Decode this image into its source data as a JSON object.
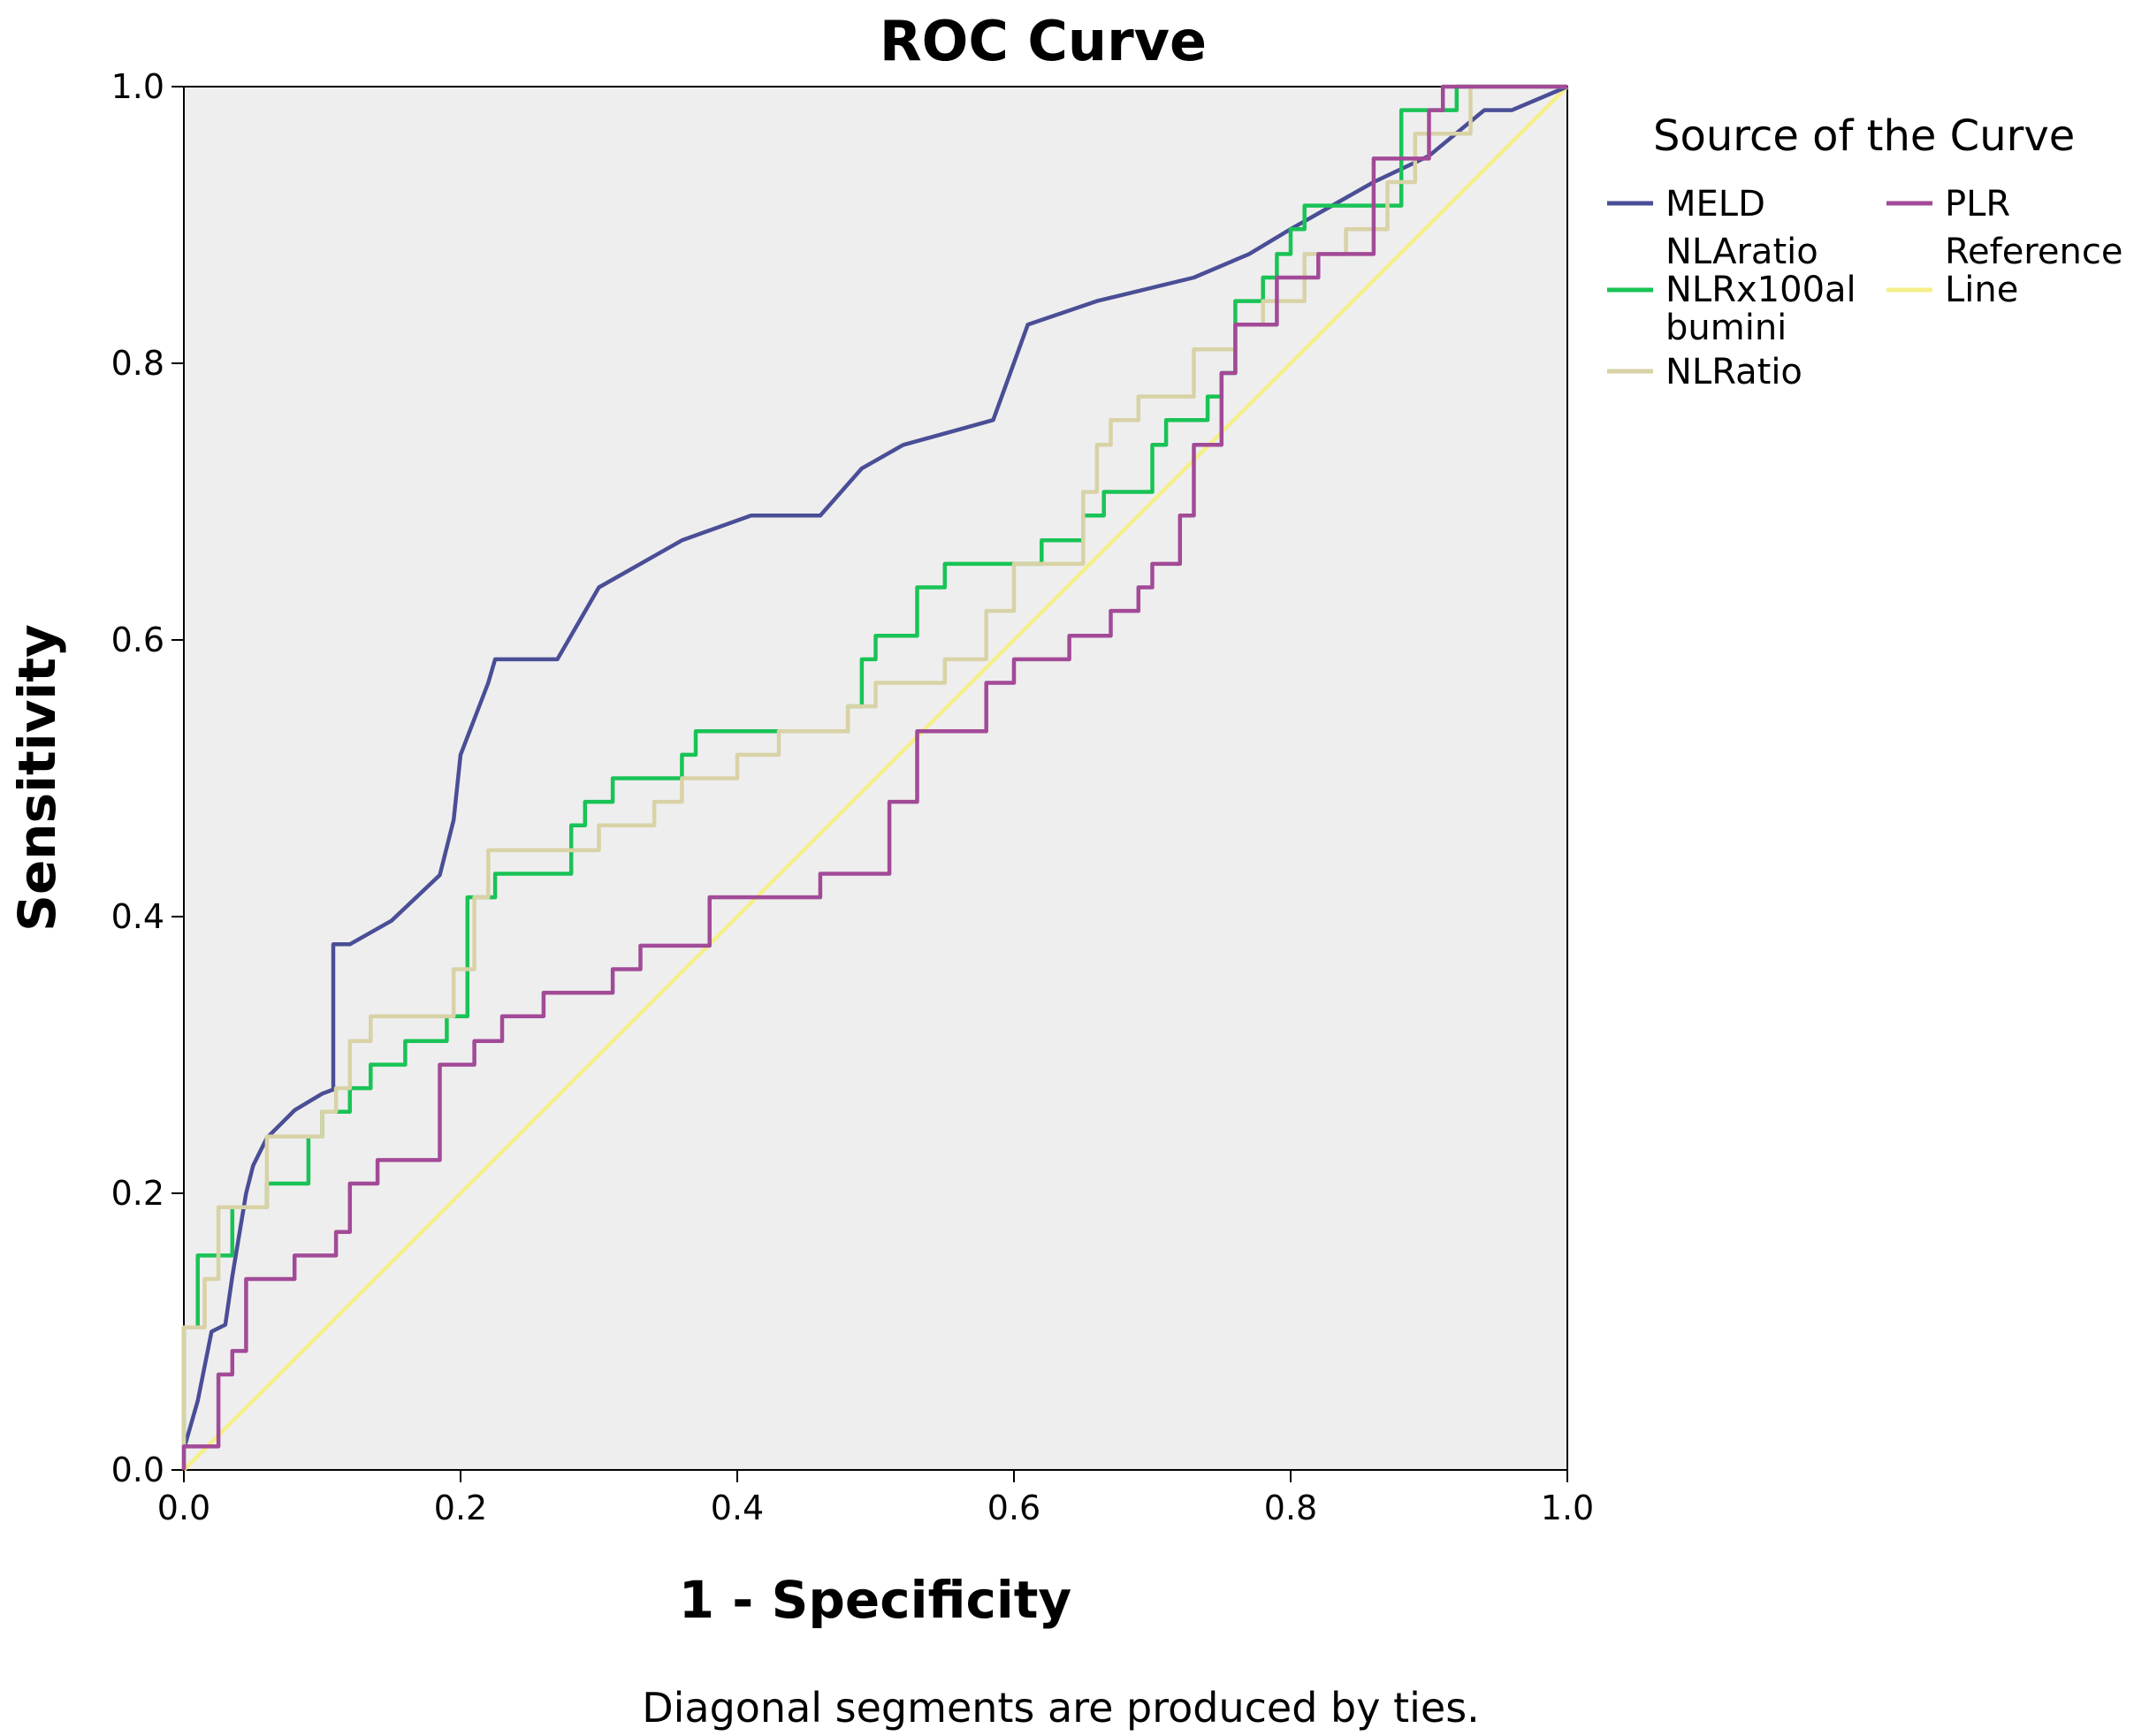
{
  "chart_data": {
    "type": "line",
    "title": "ROC Curve",
    "xlabel": "1 - Specificity",
    "ylabel": "Sensitivity",
    "xlim": [
      0,
      1
    ],
    "ylim": [
      0,
      1
    ],
    "xticks": [
      "0.0",
      "0.2",
      "0.4",
      "0.6",
      "0.8",
      "1.0"
    ],
    "yticks": [
      "0.0",
      "0.2",
      "0.4",
      "0.6",
      "0.8",
      "1.0"
    ],
    "grid": false,
    "legend_title": "Source of the Curve",
    "legend_position": "right",
    "footnote": "Diagonal segments are produced by ties.",
    "series": [
      {
        "name": "MELD",
        "color": "#4a4e96",
        "x": [
          0.0,
          0.01,
          0.02,
          0.03,
          0.035,
          0.045,
          0.05,
          0.06,
          0.08,
          0.1,
          0.108,
          0.108,
          0.12,
          0.15,
          0.185,
          0.195,
          0.2,
          0.22,
          0.225,
          0.24,
          0.27,
          0.3,
          0.36,
          0.41,
          0.46,
          0.49,
          0.52,
          0.56,
          0.585,
          0.61,
          0.66,
          0.73,
          0.77,
          0.8,
          0.86,
          0.9,
          0.94,
          0.96,
          1.0
        ],
        "y": [
          0.015,
          0.05,
          0.1,
          0.105,
          0.14,
          0.2,
          0.22,
          0.24,
          0.26,
          0.272,
          0.275,
          0.38,
          0.38,
          0.397,
          0.43,
          0.47,
          0.517,
          0.569,
          0.586,
          0.586,
          0.586,
          0.638,
          0.672,
          0.69,
          0.69,
          0.724,
          0.741,
          0.752,
          0.759,
          0.828,
          0.845,
          0.862,
          0.879,
          0.897,
          0.931,
          0.95,
          0.983,
          0.983,
          1.0
        ]
      },
      {
        "name": "NLAratio NLRx100albumini",
        "color": "#19c356",
        "x": [
          0.0,
          0.0,
          0.01,
          0.01,
          0.035,
          0.035,
          0.06,
          0.06,
          0.09,
          0.09,
          0.1,
          0.1,
          0.12,
          0.12,
          0.135,
          0.135,
          0.16,
          0.16,
          0.19,
          0.19,
          0.205,
          0.205,
          0.225,
          0.225,
          0.28,
          0.28,
          0.29,
          0.29,
          0.31,
          0.31,
          0.36,
          0.36,
          0.37,
          0.37,
          0.48,
          0.48,
          0.49,
          0.49,
          0.5,
          0.5,
          0.53,
          0.53,
          0.55,
          0.55,
          0.56,
          0.56,
          0.62,
          0.62,
          0.65,
          0.65,
          0.665,
          0.665,
          0.7,
          0.7,
          0.71,
          0.71,
          0.74,
          0.74,
          0.75,
          0.75,
          0.76,
          0.76,
          0.78,
          0.78,
          0.79,
          0.79,
          0.8,
          0.8,
          0.81,
          0.81,
          0.82,
          0.82,
          0.88,
          0.88,
          0.92,
          0.92,
          0.93,
          1.0
        ],
        "y": [
          0.0,
          0.103,
          0.103,
          0.155,
          0.155,
          0.19,
          0.19,
          0.207,
          0.207,
          0.241,
          0.241,
          0.259,
          0.259,
          0.276,
          0.276,
          0.293,
          0.293,
          0.31,
          0.31,
          0.328,
          0.328,
          0.414,
          0.414,
          0.431,
          0.431,
          0.466,
          0.466,
          0.483,
          0.483,
          0.5,
          0.5,
          0.517,
          0.517,
          0.534,
          0.534,
          0.552,
          0.552,
          0.586,
          0.586,
          0.603,
          0.603,
          0.638,
          0.638,
          0.655,
          0.655,
          0.655,
          0.655,
          0.672,
          0.672,
          0.69,
          0.69,
          0.707,
          0.707,
          0.741,
          0.741,
          0.759,
          0.759,
          0.776,
          0.776,
          0.793,
          0.793,
          0.845,
          0.845,
          0.862,
          0.862,
          0.879,
          0.879,
          0.897,
          0.897,
          0.914,
          0.914,
          0.914,
          0.914,
          0.983,
          0.983,
          1.0,
          1.0,
          1.0
        ]
      },
      {
        "name": "NLRatio",
        "color": "#d8d2a6",
        "x": [
          0.0,
          0.0,
          0.015,
          0.015,
          0.025,
          0.025,
          0.06,
          0.06,
          0.1,
          0.1,
          0.11,
          0.11,
          0.12,
          0.12,
          0.135,
          0.135,
          0.195,
          0.195,
          0.21,
          0.21,
          0.22,
          0.22,
          0.3,
          0.3,
          0.34,
          0.34,
          0.36,
          0.36,
          0.4,
          0.4,
          0.43,
          0.43,
          0.48,
          0.48,
          0.5,
          0.5,
          0.55,
          0.55,
          0.58,
          0.58,
          0.6,
          0.6,
          0.65,
          0.65,
          0.66,
          0.66,
          0.67,
          0.67,
          0.69,
          0.69,
          0.73,
          0.73,
          0.76,
          0.76,
          0.78,
          0.78,
          0.79,
          0.79,
          0.81,
          0.81,
          0.84,
          0.84,
          0.87,
          0.87,
          0.89,
          0.89,
          0.93,
          0.93,
          1.0
        ],
        "y": [
          0.0,
          0.103,
          0.103,
          0.138,
          0.138,
          0.19,
          0.19,
          0.241,
          0.241,
          0.259,
          0.259,
          0.276,
          0.276,
          0.31,
          0.31,
          0.328,
          0.328,
          0.362,
          0.362,
          0.414,
          0.414,
          0.448,
          0.448,
          0.466,
          0.466,
          0.483,
          0.483,
          0.5,
          0.5,
          0.517,
          0.517,
          0.534,
          0.534,
          0.552,
          0.552,
          0.569,
          0.569,
          0.586,
          0.586,
          0.621,
          0.621,
          0.655,
          0.655,
          0.707,
          0.707,
          0.741,
          0.741,
          0.759,
          0.759,
          0.776,
          0.776,
          0.81,
          0.81,
          0.828,
          0.828,
          0.845,
          0.845,
          0.845,
          0.845,
          0.879,
          0.879,
          0.897,
          0.897,
          0.931,
          0.931,
          0.966,
          0.966,
          1.0,
          1.0
        ]
      },
      {
        "name": "PLR",
        "color": "#a24a97",
        "x": [
          0.0,
          0.0,
          0.025,
          0.025,
          0.035,
          0.035,
          0.045,
          0.045,
          0.08,
          0.08,
          0.11,
          0.11,
          0.12,
          0.12,
          0.14,
          0.14,
          0.185,
          0.185,
          0.21,
          0.21,
          0.23,
          0.23,
          0.26,
          0.26,
          0.31,
          0.31,
          0.33,
          0.33,
          0.38,
          0.38,
          0.46,
          0.46,
          0.51,
          0.51,
          0.53,
          0.53,
          0.58,
          0.58,
          0.6,
          0.6,
          0.64,
          0.64,
          0.67,
          0.67,
          0.69,
          0.69,
          0.7,
          0.7,
          0.72,
          0.72,
          0.73,
          0.73,
          0.75,
          0.75,
          0.76,
          0.76,
          0.79,
          0.79,
          0.82,
          0.82,
          0.84,
          0.84,
          0.86,
          0.86,
          0.9,
          0.9,
          0.91,
          0.91,
          0.93,
          0.93,
          0.95,
          0.95,
          1.0
        ],
        "y": [
          0.0,
          0.017,
          0.017,
          0.069,
          0.069,
          0.086,
          0.086,
          0.138,
          0.138,
          0.155,
          0.155,
          0.172,
          0.172,
          0.207,
          0.207,
          0.224,
          0.224,
          0.293,
          0.293,
          0.31,
          0.31,
          0.328,
          0.328,
          0.345,
          0.345,
          0.362,
          0.362,
          0.379,
          0.379,
          0.414,
          0.414,
          0.431,
          0.431,
          0.483,
          0.483,
          0.534,
          0.534,
          0.569,
          0.569,
          0.586,
          0.586,
          0.603,
          0.603,
          0.621,
          0.621,
          0.638,
          0.638,
          0.655,
          0.655,
          0.69,
          0.69,
          0.741,
          0.741,
          0.793,
          0.793,
          0.828,
          0.828,
          0.862,
          0.862,
          0.879,
          0.879,
          0.879,
          0.879,
          0.948,
          0.948,
          0.983,
          0.983,
          1.0,
          1.0,
          1.0,
          1.0,
          1.0,
          1.0
        ]
      },
      {
        "name": "Reference Line",
        "color": "#f6ef8a",
        "x": [
          0.0,
          1.0
        ],
        "y": [
          0.0,
          1.0
        ]
      }
    ],
    "legend": [
      {
        "series": "MELD",
        "label_lines": [
          "MELD"
        ]
      },
      {
        "series": "NLAratio NLRx100albumini",
        "label_lines": [
          "NLAratio",
          "NLRx100al",
          "bumini"
        ]
      },
      {
        "series": "NLRatio",
        "label_lines": [
          "NLRatio"
        ]
      },
      {
        "series": "PLR",
        "label_lines": [
          "PLR"
        ]
      },
      {
        "series": "Reference Line",
        "label_lines": [
          "Reference",
          "Line"
        ]
      }
    ]
  }
}
